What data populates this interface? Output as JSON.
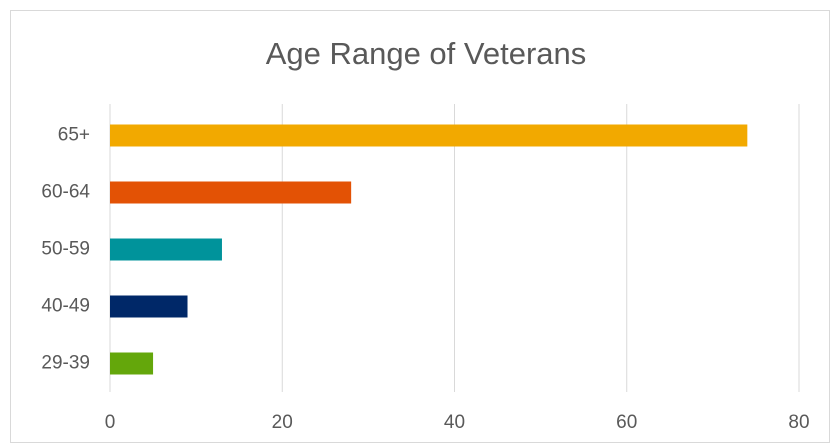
{
  "chart_data": {
    "type": "hbar",
    "title": "Age Range of Veterans",
    "categories": [
      "65+",
      "60-64",
      "50-59",
      "40-49",
      "29-39"
    ],
    "values": [
      74,
      28,
      13,
      9,
      5
    ],
    "colors": [
      "#f2a900",
      "#e35205",
      "#00939b",
      "#002868",
      "#64a70b"
    ],
    "xlim": [
      0,
      80
    ],
    "xticks": [
      0,
      20,
      40,
      60,
      80
    ],
    "grid": true
  }
}
